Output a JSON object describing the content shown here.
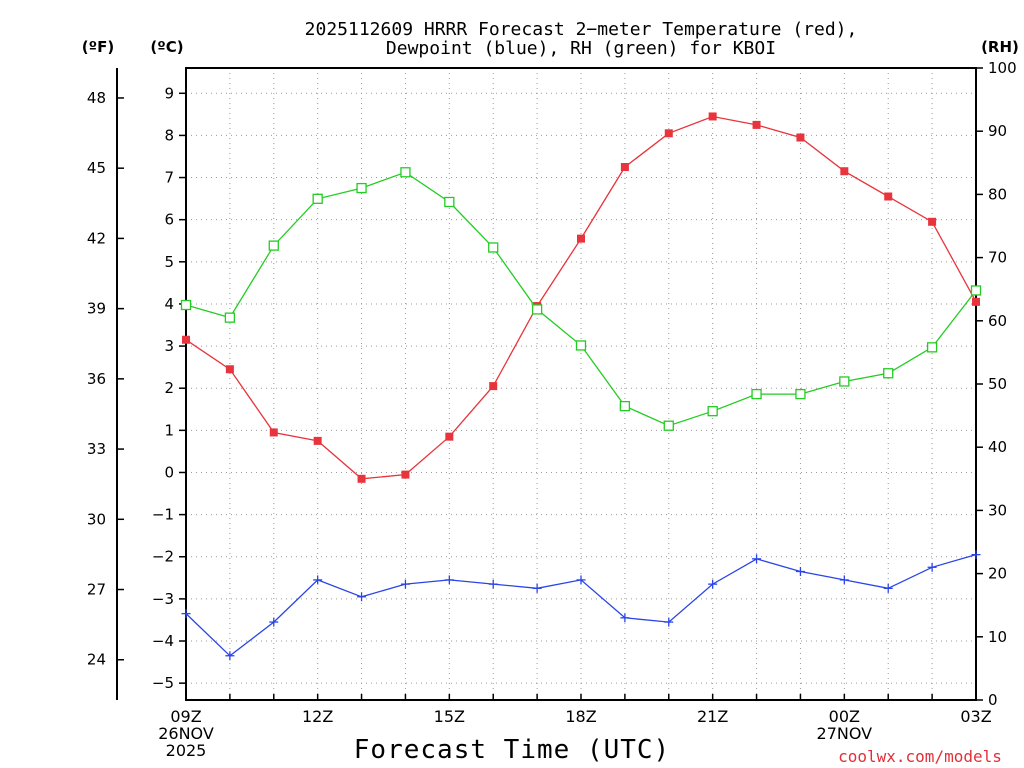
{
  "chart_data": {
    "type": "line",
    "title_line1": "2025112609 HRRR Forecast 2−meter Temperature (red),",
    "title_line2": "Dewpoint (blue), RH (green) for KBOI",
    "unit_f": "(ºF)",
    "unit_c": "(ºC)",
    "unit_rh": "(RH)",
    "xlabel": "Forecast Time (UTC)",
    "credit": "coolwx.com/models",
    "x": [
      0,
      1,
      2,
      3,
      4,
      5,
      6,
      7,
      8,
      9,
      10,
      11,
      12,
      13,
      14,
      15,
      16,
      17,
      18
    ],
    "x_tick_labels": [
      {
        "pos": 0,
        "lines": [
          "09Z",
          "26NOV",
          "2025"
        ]
      },
      {
        "pos": 3,
        "lines": [
          "12Z"
        ]
      },
      {
        "pos": 6,
        "lines": [
          "15Z"
        ]
      },
      {
        "pos": 9,
        "lines": [
          "18Z"
        ]
      },
      {
        "pos": 12,
        "lines": [
          "21Z"
        ]
      },
      {
        "pos": 15,
        "lines": [
          "00Z",
          "27NOV"
        ]
      },
      {
        "pos": 18,
        "lines": [
          "03Z"
        ]
      }
    ],
    "xlim": [
      0,
      18
    ],
    "ylim_c": [
      -5.4,
      9.6
    ],
    "yticks_c": [
      -5,
      -4,
      -3,
      -2,
      -1,
      0,
      1,
      2,
      3,
      4,
      5,
      6,
      7,
      8,
      9
    ],
    "yticks_f": [
      24,
      27,
      30,
      33,
      36,
      39,
      42,
      45,
      48
    ],
    "ylim_rh": [
      0,
      100
    ],
    "yticks_rh": [
      0,
      10,
      20,
      30,
      40,
      50,
      60,
      70,
      80,
      90,
      100
    ],
    "grid": true,
    "series": [
      {
        "name": "Temperature",
        "axis": "c",
        "color": "#e8343c",
        "marker": "filled-square",
        "values": [
          3.15,
          2.45,
          0.95,
          0.75,
          -0.15,
          -0.05,
          0.85,
          2.05,
          3.95,
          5.55,
          7.25,
          8.05,
          8.45,
          8.25,
          7.95,
          7.15,
          6.55,
          5.95,
          4.05
        ]
      },
      {
        "name": "Dewpoint",
        "axis": "c",
        "color": "#2a44e8",
        "marker": "plus",
        "values": [
          -3.35,
          -4.35,
          -3.55,
          -2.55,
          -2.95,
          -2.65,
          -2.55,
          -2.65,
          -2.75,
          -2.55,
          -3.45,
          -3.55,
          -2.65,
          -2.05,
          -2.35,
          -2.55,
          -2.75,
          -2.25,
          -1.95
        ]
      },
      {
        "name": "RH",
        "axis": "rh",
        "color": "#22cc22",
        "marker": "open-square",
        "values": [
          62.5,
          60.5,
          71.9,
          79.3,
          81.0,
          83.5,
          78.8,
          71.6,
          61.8,
          56.1,
          46.5,
          43.4,
          45.7,
          48.4,
          48.4,
          50.4,
          51.7,
          55.8,
          64.8
        ]
      }
    ]
  }
}
